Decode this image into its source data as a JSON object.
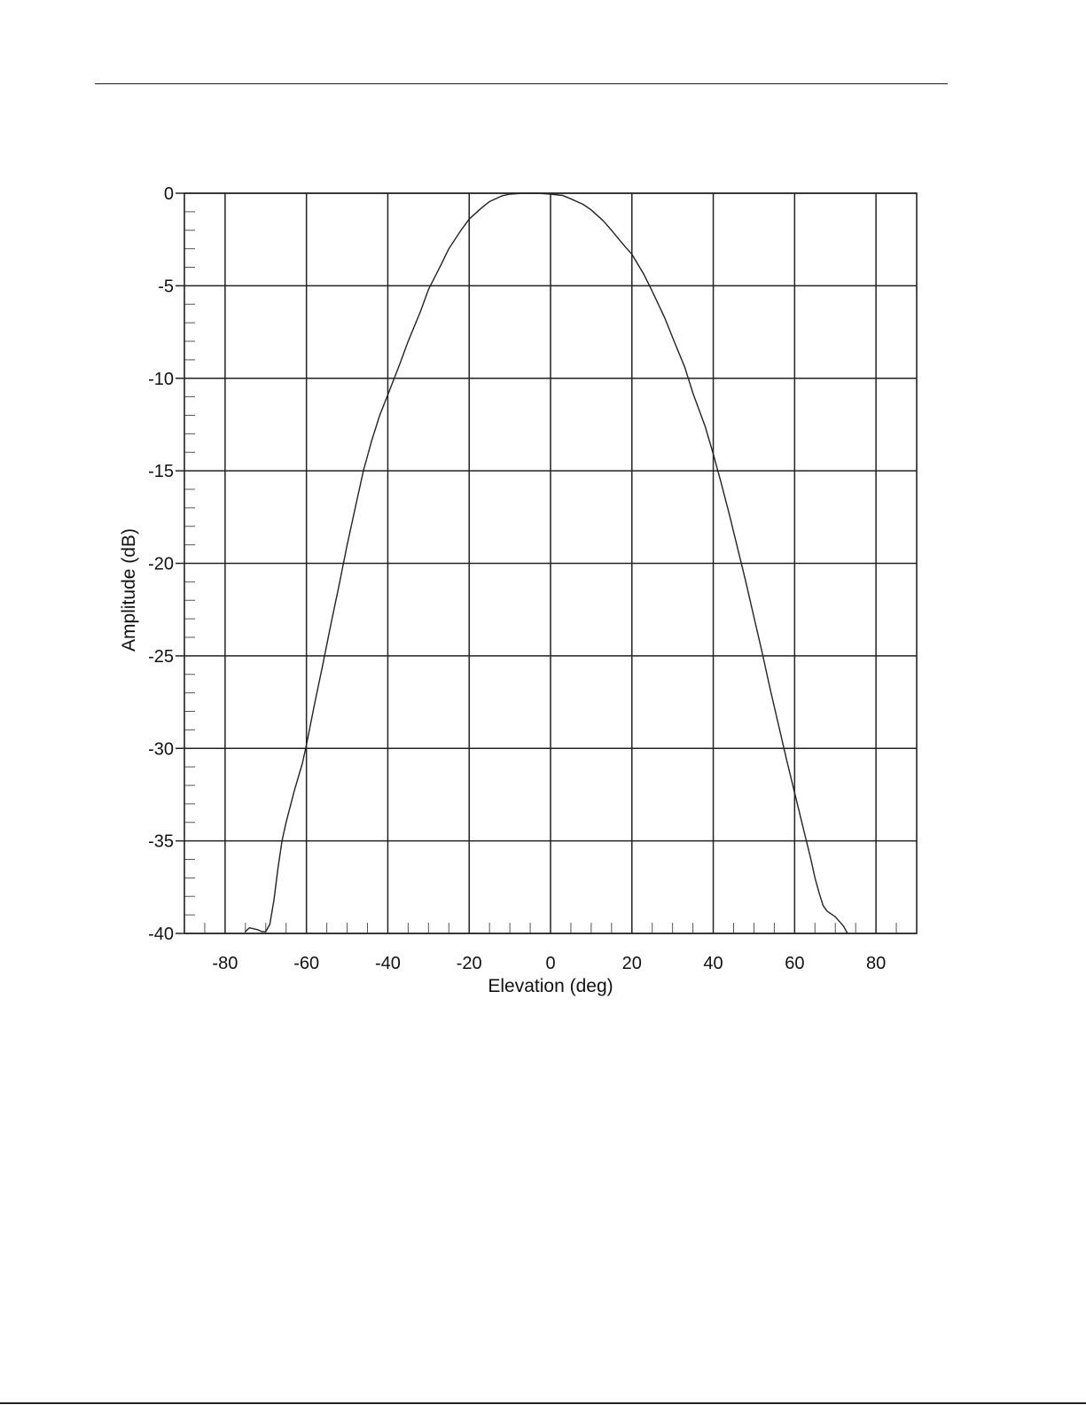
{
  "chart_data": {
    "type": "line",
    "title": "",
    "xlabel": "Elevation (deg)",
    "ylabel": "Amplitude (dB)",
    "xlim": [
      -90,
      90
    ],
    "ylim": [
      -40,
      0
    ],
    "x_ticks": [
      -80,
      -60,
      -40,
      -20,
      0,
      20,
      40,
      60,
      80
    ],
    "x_tick_labels": [
      "-80",
      "-60",
      "-40",
      "-20",
      "0",
      "20",
      "40",
      "60",
      "80"
    ],
    "y_ticks": [
      0,
      -5,
      -10,
      -15,
      -20,
      -25,
      -30,
      -35,
      -40
    ],
    "y_tick_labels": [
      "0",
      "-5",
      "-10",
      "-15",
      "-20",
      "-25",
      "-30",
      "-35",
      "-40"
    ],
    "grid": true,
    "legend": "none",
    "line_color": "#222222",
    "series": [
      {
        "x": [
          -75,
          -74,
          -72,
          -71,
          -70,
          -69,
          -68,
          -67,
          -66,
          -65,
          -63,
          -61,
          -60,
          -58,
          -56,
          -54,
          -52,
          -50,
          -48,
          -46,
          -44,
          -42,
          -40,
          -37,
          -35,
          -32,
          -30,
          -27,
          -25,
          -22,
          -20,
          -17,
          -15,
          -12,
          -10,
          -7,
          -5,
          -3,
          0,
          3,
          5,
          8,
          10,
          13,
          15,
          18,
          20,
          23,
          25,
          28,
          30,
          33,
          35,
          38,
          40,
          42,
          44,
          46,
          48,
          50,
          52,
          54,
          56,
          58,
          60,
          62,
          64,
          65,
          66,
          67,
          68,
          70,
          72,
          73
        ],
        "y": [
          -39.9,
          -39.7,
          -39.8,
          -39.9,
          -39.9,
          -39.5,
          -38.2,
          -36.5,
          -35.0,
          -34.0,
          -32.3,
          -30.8,
          -29.8,
          -27.6,
          -25.5,
          -23.3,
          -21.2,
          -19.0,
          -17.0,
          -15.0,
          -13.4,
          -12.0,
          -10.9,
          -9.2,
          -8.0,
          -6.4,
          -5.2,
          -3.9,
          -3.0,
          -2.0,
          -1.4,
          -0.8,
          -0.45,
          -0.15,
          -0.05,
          0.0,
          0.0,
          0.0,
          -0.05,
          -0.12,
          -0.3,
          -0.6,
          -0.9,
          -1.5,
          -2.0,
          -2.8,
          -3.3,
          -4.4,
          -5.3,
          -6.7,
          -7.8,
          -9.4,
          -10.8,
          -12.6,
          -14.1,
          -15.7,
          -17.4,
          -19.2,
          -21.0,
          -22.9,
          -24.8,
          -26.8,
          -28.7,
          -30.6,
          -32.4,
          -34.2,
          -36.0,
          -37.0,
          -37.8,
          -38.5,
          -38.8,
          -39.1,
          -39.6,
          -40.0
        ]
      }
    ]
  }
}
